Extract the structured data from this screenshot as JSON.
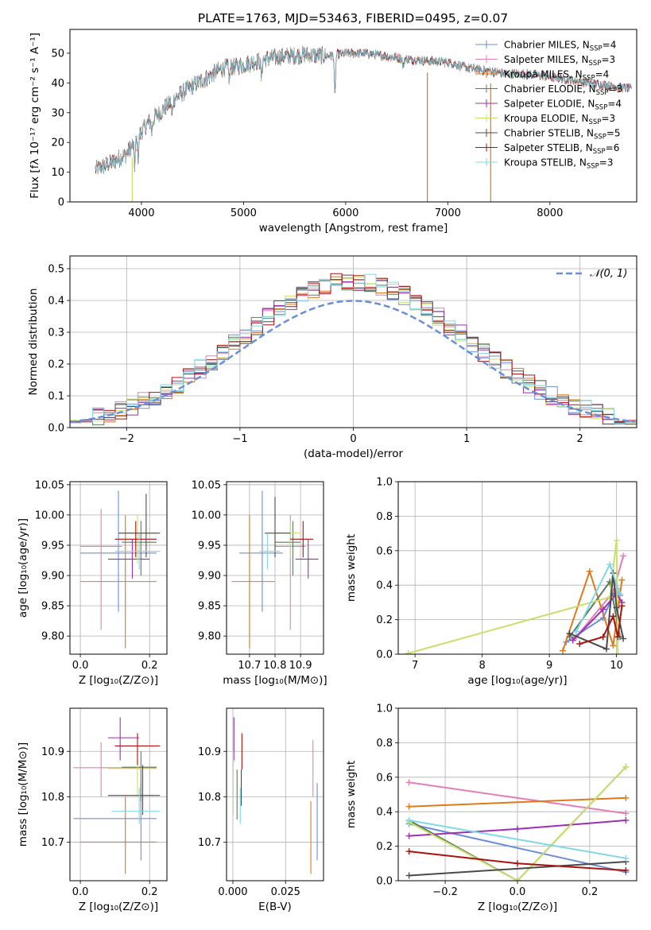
{
  "title": "PLATE=1763, MJD=53463, FIBERID=0495, z=0.07",
  "colors": {
    "Chabrier MILES": "#6a8fd8",
    "Salpeter MILES": "#e87db8",
    "Kroupa MILES": "#e0781e",
    "Chabrier ELODIE": "#5c7a5c",
    "Salpeter ELODIE": "#9b30b0",
    "Kroupa ELODIE": "#c8e06a",
    "Chabrier STELIB": "#4a4a4a",
    "Salpeter STELIB": "#aa1111",
    "Kroupa STELIB": "#7ed8e8",
    "gaussian": "#6a8fd8"
  },
  "chart_data": [
    {
      "id": "spectrum",
      "type": "line",
      "xlabel": "wavelength [Angstrom, rest frame]",
      "ylabel": "Flux [fλ 10⁻¹⁷ erg cm⁻² s⁻¹ A⁻¹]",
      "xlim": [
        3300,
        8850
      ],
      "ylim": [
        0,
        58
      ],
      "xticks": [
        4000,
        5000,
        6000,
        7000,
        8000
      ],
      "yticks": [
        0,
        10,
        20,
        30,
        40,
        50
      ],
      "legend_position": "top-right",
      "legend": [
        {
          "name": "Chabrier MILES",
          "label": "Chabrier MILES, N",
          "sub": "SSP",
          "n": "=4"
        },
        {
          "name": "Salpeter MILES",
          "label": "Salpeter MILES, N",
          "sub": "SSP",
          "n": "=3"
        },
        {
          "name": "Kroupa MILES",
          "label": "Kroupa MILES, N",
          "sub": "SSP",
          "n": "=4"
        },
        {
          "name": "Chabrier ELODIE",
          "label": "Chabrier ELODIE, N",
          "sub": "SSP",
          "n": "=3"
        },
        {
          "name": "Salpeter ELODIE",
          "label": "Salpeter ELODIE, N",
          "sub": "SSP",
          "n": "=4"
        },
        {
          "name": "Kroupa ELODIE",
          "label": "Kroupa ELODIE, N",
          "sub": "SSP",
          "n": "=3"
        },
        {
          "name": "Chabrier STELIB",
          "label": "Chabrier STELIB, N",
          "sub": "SSP",
          "n": "=5"
        },
        {
          "name": "Salpeter STELIB",
          "label": "Salpeter STELIB, N",
          "sub": "SSP",
          "n": "=6"
        },
        {
          "name": "Kroupa STELIB",
          "label": "Kroupa STELIB, N",
          "sub": "SSP",
          "n": "=3"
        }
      ],
      "continuum": [
        [
          3550,
          11
        ],
        [
          3700,
          13
        ],
        [
          3850,
          16
        ],
        [
          3950,
          21
        ],
        [
          4050,
          26
        ],
        [
          4150,
          29
        ],
        [
          4300,
          34
        ],
        [
          4450,
          38
        ],
        [
          4600,
          41
        ],
        [
          4800,
          45
        ],
        [
          5000,
          46
        ],
        [
          5200,
          48
        ],
        [
          5400,
          49
        ],
        [
          5600,
          49.5
        ],
        [
          5800,
          49
        ],
        [
          6000,
          50
        ],
        [
          6200,
          50
        ],
        [
          6400,
          49
        ],
        [
          6600,
          48
        ],
        [
          6800,
          47.5
        ],
        [
          7000,
          47
        ],
        [
          7200,
          45
        ],
        [
          7400,
          44
        ],
        [
          7600,
          43
        ],
        [
          7800,
          43
        ],
        [
          8000,
          42
        ],
        [
          8200,
          41
        ],
        [
          8400,
          40
        ],
        [
          8600,
          39
        ],
        [
          8800,
          38
        ]
      ],
      "absorptions": [
        [
          3934,
          8
        ],
        [
          3968,
          7
        ],
        [
          4102,
          4
        ],
        [
          4300,
          5
        ],
        [
          4861,
          4
        ],
        [
          5175,
          6
        ],
        [
          5895,
          14
        ],
        [
          6563,
          3
        ]
      ],
      "dropouts": [
        {
          "x": 3910,
          "y": 0
        },
        {
          "x": 6800,
          "y": 0
        },
        {
          "x": 7420,
          "y": 0
        }
      ]
    },
    {
      "id": "residual-histogram",
      "type": "bar",
      "xlabel": "(data-model)/error",
      "ylabel": "Normed distribution",
      "xlim": [
        -2.5,
        2.5
      ],
      "ylim": [
        0,
        0.54
      ],
      "xticks": [
        -2,
        -1,
        0,
        1,
        2
      ],
      "yticks": [
        0.0,
        0.1,
        0.2,
        0.3,
        0.4,
        0.5
      ],
      "grid": true,
      "bin_width": 0.1,
      "legend_label": "𝒩(0, 1)",
      "legend_position": "top-right"
    },
    {
      "id": "age-vs-Z",
      "type": "scatter",
      "xlabel": "Z [log₁₀(Z/Z⊙)]",
      "ylabel": "age  [log₁₀(age/yr)]",
      "xlim": [
        -0.03,
        0.25
      ],
      "ylim": [
        9.77,
        10.055
      ],
      "xticks": [
        0.0,
        0.2
      ],
      "yticks": [
        9.8,
        9.85,
        9.9,
        9.95,
        10.0,
        10.05
      ],
      "grid": true,
      "points": [
        {
          "name": "Chabrier MILES",
          "x": 0.11,
          "xlo": 0.0,
          "xhi": 0.22,
          "y": 9.937,
          "ylo": 9.84,
          "yhi": 10.04
        },
        {
          "name": "Salpeter MILES",
          "x": 0.06,
          "xlo": 0.0,
          "xhi": 0.12,
          "y": 9.948,
          "ylo": 9.81,
          "yhi": 10.01
        },
        {
          "name": "Kroupa MILES",
          "x": 0.13,
          "xlo": 0.0,
          "xhi": 0.22,
          "y": 9.89,
          "ylo": 9.78,
          "yhi": 10.0
        },
        {
          "name": "Chabrier ELODIE",
          "x": 0.175,
          "xlo": 0.12,
          "xhi": 0.22,
          "y": 9.955,
          "ylo": 9.9,
          "yhi": 9.99
        },
        {
          "name": "Salpeter ELODIE",
          "x": 0.15,
          "xlo": 0.08,
          "xhi": 0.2,
          "y": 9.927,
          "ylo": 9.895,
          "yhi": 9.96
        },
        {
          "name": "Kroupa ELODIE",
          "x": 0.165,
          "xlo": 0.11,
          "xhi": 0.22,
          "y": 9.97,
          "ylo": 9.92,
          "yhi": 10.0
        },
        {
          "name": "Chabrier STELIB",
          "x": 0.19,
          "xlo": 0.11,
          "xhi": 0.23,
          "y": 9.97,
          "ylo": 9.93,
          "yhi": 10.035
        },
        {
          "name": "Salpeter STELIB",
          "x": 0.16,
          "xlo": 0.1,
          "xhi": 0.22,
          "y": 9.96,
          "ylo": 9.93,
          "yhi": 9.99
        },
        {
          "name": "Kroupa STELIB",
          "x": 0.17,
          "xlo": 0.1,
          "xhi": 0.23,
          "y": 9.94,
          "ylo": 9.91,
          "yhi": 9.97
        }
      ]
    },
    {
      "id": "age-vs-mass",
      "type": "scatter",
      "xlabel": "mass [log₁₀(M/M⊙)]",
      "ylabel": "",
      "xlim": [
        10.61,
        10.99
      ],
      "ylim": [
        9.77,
        10.055
      ],
      "xticks": [
        10.7,
        10.8,
        10.9
      ],
      "yticks": [
        9.8,
        9.85,
        9.9,
        9.95,
        10.0,
        10.05
      ],
      "grid": true,
      "points": [
        {
          "name": "Chabrier MILES",
          "x": 10.75,
          "xlo": 10.66,
          "xhi": 10.83,
          "y": 9.937,
          "ylo": 9.84,
          "yhi": 10.04
        },
        {
          "name": "Salpeter MILES",
          "x": 10.86,
          "xlo": 10.8,
          "xhi": 10.92,
          "y": 9.948,
          "ylo": 9.81,
          "yhi": 10.0
        },
        {
          "name": "Kroupa MILES",
          "x": 10.7,
          "xlo": 10.63,
          "xhi": 10.8,
          "y": 9.89,
          "ylo": 9.78,
          "yhi": 10.0
        },
        {
          "name": "Chabrier ELODIE",
          "x": 10.87,
          "xlo": 10.8,
          "xhi": 10.9,
          "y": 9.955,
          "ylo": 9.9,
          "yhi": 9.99
        },
        {
          "name": "Salpeter ELODIE",
          "x": 10.93,
          "xlo": 10.88,
          "xhi": 10.97,
          "y": 9.927,
          "ylo": 9.895,
          "yhi": 9.96
        },
        {
          "name": "Kroupa ELODIE",
          "x": 10.86,
          "xlo": 10.8,
          "xhi": 10.9,
          "y": 9.97,
          "ylo": 9.93,
          "yhi": 9.99
        },
        {
          "name": "Chabrier STELIB",
          "x": 10.8,
          "xlo": 10.76,
          "xhi": 10.86,
          "y": 9.97,
          "ylo": 9.93,
          "yhi": 10.03
        },
        {
          "name": "Salpeter STELIB",
          "x": 10.91,
          "xlo": 10.86,
          "xhi": 10.95,
          "y": 9.96,
          "ylo": 9.93,
          "yhi": 9.99
        },
        {
          "name": "Kroupa STELIB",
          "x": 10.77,
          "xlo": 10.74,
          "xhi": 10.82,
          "y": 9.94,
          "ylo": 9.91,
          "yhi": 9.97
        }
      ]
    },
    {
      "id": "weight-vs-age",
      "type": "line",
      "xlabel": "age  [log₁₀(age/yr)]",
      "ylabel": "mass weight",
      "xlim": [
        6.75,
        10.3
      ],
      "ylim": [
        0,
        1
      ],
      "xticks": [
        7,
        8,
        9,
        10
      ],
      "yticks": [
        0.0,
        0.2,
        0.4,
        0.6,
        0.8,
        1.0
      ],
      "grid": true,
      "series": [
        {
          "name": "Chabrier MILES",
          "x": [
            9.25,
            9.8,
            10.0,
            10.05
          ],
          "y": [
            0.07,
            0.21,
            0.38,
            0.34
          ]
        },
        {
          "name": "Salpeter MILES",
          "x": [
            9.4,
            9.95,
            10.1
          ],
          "y": [
            0.1,
            0.36,
            0.57
          ]
        },
        {
          "name": "Kroupa MILES",
          "x": [
            9.2,
            9.6,
            9.95,
            10.08
          ],
          "y": [
            0.02,
            0.48,
            0.05,
            0.43
          ]
        },
        {
          "name": "Chabrier ELODIE",
          "x": [
            9.3,
            9.9,
            10.05
          ],
          "y": [
            0.1,
            0.42,
            0.1
          ]
        },
        {
          "name": "Salpeter ELODIE",
          "x": [
            9.35,
            9.8,
            10.0,
            10.08
          ],
          "y": [
            0.08,
            0.26,
            0.35,
            0.3
          ]
        },
        {
          "name": "Kroupa ELODIE",
          "x": [
            6.9,
            9.9,
            10.0,
            10.02
          ],
          "y": [
            0.005,
            0.33,
            0.66,
            0.0
          ]
        },
        {
          "name": "Chabrier STELIB",
          "x": [
            9.3,
            9.85,
            9.95,
            10.0,
            10.1
          ],
          "y": [
            0.12,
            0.03,
            0.47,
            0.27,
            0.09
          ]
        },
        {
          "name": "Salpeter STELIB",
          "x": [
            9.45,
            9.8,
            9.95,
            10.02,
            10.08
          ],
          "y": [
            0.06,
            0.1,
            0.22,
            0.1,
            0.28
          ]
        },
        {
          "name": "Kroupa STELIB",
          "x": [
            9.4,
            9.9,
            10.05
          ],
          "y": [
            0.13,
            0.52,
            0.35
          ]
        }
      ]
    },
    {
      "id": "mass-vs-Z",
      "type": "scatter",
      "xlabel": "Z [log₁₀(Z/Z⊙)]",
      "ylabel": "mass [log₁₀(M/M⊙)]",
      "xlim": [
        -0.03,
        0.25
      ],
      "ylim": [
        10.615,
        10.995
      ],
      "xticks": [
        0.0,
        0.2
      ],
      "yticks": [
        10.7,
        10.8,
        10.9
      ],
      "grid": true,
      "points": [
        {
          "name": "Chabrier MILES",
          "x": 0.175,
          "xlo": -0.02,
          "xhi": 0.22,
          "y": 10.752,
          "ylo": 10.66,
          "yhi": 10.83
        },
        {
          "name": "Salpeter MILES",
          "x": 0.06,
          "xlo": -0.02,
          "xhi": 0.22,
          "y": 10.864,
          "ylo": 10.8,
          "yhi": 10.92
        },
        {
          "name": "Kroupa MILES",
          "x": 0.13,
          "xlo": 0.0,
          "xhi": 0.22,
          "y": 10.7,
          "ylo": 10.63,
          "yhi": 10.8
        },
        {
          "name": "Chabrier ELODIE",
          "x": 0.175,
          "xlo": 0.12,
          "xhi": 0.22,
          "y": 10.865,
          "ylo": 10.79,
          "yhi": 10.9
        },
        {
          "name": "Salpeter ELODIE",
          "x": 0.115,
          "xlo": 0.08,
          "xhi": 0.17,
          "y": 10.93,
          "ylo": 10.88,
          "yhi": 10.975
        },
        {
          "name": "Kroupa ELODIE",
          "x": 0.165,
          "xlo": 0.08,
          "xhi": 0.22,
          "y": 10.862,
          "ylo": 10.8,
          "yhi": 10.91
        },
        {
          "name": "Chabrier STELIB",
          "x": 0.18,
          "xlo": 0.08,
          "xhi": 0.23,
          "y": 10.803,
          "ylo": 10.76,
          "yhi": 10.87
        },
        {
          "name": "Salpeter STELIB",
          "x": 0.165,
          "xlo": 0.1,
          "xhi": 0.23,
          "y": 10.912,
          "ylo": 10.87,
          "yhi": 10.94
        },
        {
          "name": "Kroupa STELIB",
          "x": 0.17,
          "xlo": 0.09,
          "xhi": 0.23,
          "y": 10.768,
          "ylo": 10.74,
          "yhi": 10.82
        }
      ]
    },
    {
      "id": "mass-vs-ebv",
      "type": "scatter",
      "xlabel": "E(B-V)",
      "ylabel": "",
      "xlim": [
        -0.003,
        0.043
      ],
      "ylim": [
        10.615,
        10.995
      ],
      "xticks": [
        0.0,
        0.025
      ],
      "yticks": [
        10.7,
        10.8,
        10.9
      ],
      "grid": true,
      "points": [
        {
          "name": "Chabrier MILES",
          "x": 0.04,
          "y": 10.752,
          "ylo": 10.66,
          "yhi": 10.83
        },
        {
          "name": "Salpeter MILES",
          "x": 0.038,
          "y": 10.864,
          "ylo": 10.8,
          "yhi": 10.925
        },
        {
          "name": "Kroupa MILES",
          "x": 0.037,
          "y": 10.7,
          "ylo": 10.63,
          "yhi": 10.79
        },
        {
          "name": "Chabrier ELODIE",
          "x": 0.002,
          "y": 10.8,
          "ylo": 10.75,
          "yhi": 10.86
        },
        {
          "name": "Salpeter ELODIE",
          "x": 0.0005,
          "y": 10.93,
          "ylo": 10.88,
          "yhi": 10.975
        },
        {
          "name": "Kroupa ELODIE",
          "x": 0.0002,
          "y": 10.83,
          "ylo": 10.76,
          "yhi": 10.9
        },
        {
          "name": "Chabrier STELIB",
          "x": 0.004,
          "y": 10.82,
          "ylo": 10.78,
          "yhi": 10.86
        },
        {
          "name": "Salpeter STELIB",
          "x": 0.0043,
          "y": 10.9,
          "ylo": 10.86,
          "yhi": 10.94
        },
        {
          "name": "Kroupa STELIB",
          "x": 0.0035,
          "y": 10.77,
          "ylo": 10.74,
          "yhi": 10.82
        }
      ]
    },
    {
      "id": "weight-vs-Z",
      "type": "line",
      "xlabel": "Z [log₁₀(Z/Z⊙)]",
      "ylabel": "mass weight",
      "xlim": [
        -0.33,
        0.33
      ],
      "ylim": [
        0,
        1
      ],
      "xticks": [
        -0.2,
        0.0,
        0.2
      ],
      "yticks": [
        0.0,
        0.2,
        0.4,
        0.6,
        0.8,
        1.0
      ],
      "grid": true,
      "series": [
        {
          "name": "Chabrier MILES",
          "x": [
            -0.3,
            0.3
          ],
          "y": [
            0.33,
            0.05
          ]
        },
        {
          "name": "Salpeter MILES",
          "x": [
            -0.3,
            0.3
          ],
          "y": [
            0.57,
            0.39
          ]
        },
        {
          "name": "Kroupa MILES",
          "x": [
            -0.3,
            0.3
          ],
          "y": [
            0.43,
            0.48
          ]
        },
        {
          "name": "Chabrier ELODIE",
          "x": [
            -0.3,
            0.0,
            0.3
          ],
          "y": [
            0.35,
            0.0,
            0.66
          ]
        },
        {
          "name": "Salpeter ELODIE",
          "x": [
            -0.3,
            0.0,
            0.3
          ],
          "y": [
            0.26,
            0.3,
            0.35
          ]
        },
        {
          "name": "Kroupa ELODIE",
          "x": [
            -0.3,
            0.0,
            0.3
          ],
          "y": [
            0.34,
            0.0,
            0.66
          ]
        },
        {
          "name": "Chabrier STELIB",
          "x": [
            -0.3,
            0.3
          ],
          "y": [
            0.03,
            0.11
          ]
        },
        {
          "name": "Salpeter STELIB",
          "x": [
            -0.3,
            0.0,
            0.3
          ],
          "y": [
            0.17,
            0.1,
            0.06
          ]
        },
        {
          "name": "Kroupa STELIB",
          "x": [
            -0.3,
            0.3
          ],
          "y": [
            0.35,
            0.13
          ]
        }
      ]
    }
  ]
}
